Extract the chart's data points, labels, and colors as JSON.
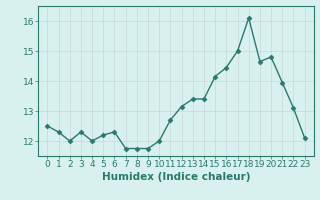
{
  "x": [
    0,
    1,
    2,
    3,
    4,
    5,
    6,
    7,
    8,
    9,
    10,
    11,
    12,
    13,
    14,
    15,
    16,
    17,
    18,
    19,
    20,
    21,
    22,
    23
  ],
  "y": [
    12.5,
    12.3,
    12.0,
    12.3,
    12.0,
    12.2,
    12.3,
    11.75,
    11.75,
    11.75,
    12.0,
    12.7,
    13.15,
    13.4,
    13.4,
    14.15,
    14.45,
    15.0,
    16.1,
    14.65,
    14.8,
    13.95,
    13.1,
    12.1
  ],
  "line_color": "#2a7a6c",
  "marker": "D",
  "marker_size": 2.5,
  "bg_color": "#d8f0ee",
  "grid_color": "#c8d8d8",
  "xlabel": "Humidex (Indice chaleur)",
  "ylim": [
    11.5,
    16.5
  ],
  "yticks": [
    12,
    13,
    14,
    15,
    16
  ],
  "xticks": [
    0,
    1,
    2,
    3,
    4,
    5,
    6,
    7,
    8,
    9,
    10,
    11,
    12,
    13,
    14,
    15,
    16,
    17,
    18,
    19,
    20,
    21,
    22,
    23
  ],
  "tick_label_size": 6.5,
  "xlabel_size": 7.5,
  "line_width": 1.0,
  "spine_color": "#2a7a6c"
}
